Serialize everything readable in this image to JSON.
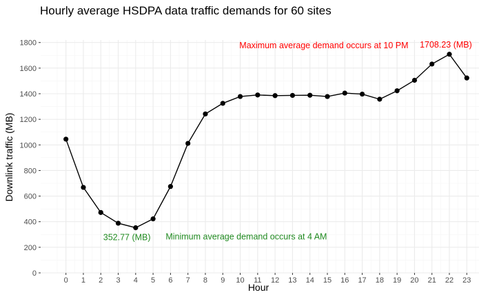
{
  "chart_data": {
    "type": "line",
    "title": "Hourly average HSDPA data traffic demands for 60 sites",
    "xlabel": "Hour",
    "ylabel": "Downlink traffic (MB)",
    "x": [
      0,
      1,
      2,
      3,
      4,
      5,
      6,
      7,
      8,
      9,
      10,
      11,
      12,
      13,
      14,
      15,
      16,
      17,
      18,
      19,
      20,
      21,
      22,
      23
    ],
    "x_tick_labels": [
      "0",
      "1",
      "2",
      "3",
      "4",
      "5",
      "6",
      "7",
      "8",
      "9",
      "10",
      "11",
      "12",
      "13",
      "14",
      "15",
      "16",
      "17",
      "18",
      "19",
      "20",
      "21",
      "22",
      "23"
    ],
    "y_tick_values": [
      0,
      200,
      400,
      600,
      800,
      1000,
      1200,
      1400,
      1600,
      1800
    ],
    "y_tick_labels": [
      "0",
      "200",
      "400",
      "600",
      "800",
      "1000",
      "1200",
      "1400",
      "1600",
      "1800"
    ],
    "xlim": [
      -1.45,
      23.7
    ],
    "ylim": [
      0,
      1820
    ],
    "grid": true,
    "series": [
      {
        "values": [
          1045,
          668,
          472,
          388,
          352.77,
          422,
          675,
          1012,
          1242,
          1325,
          1378,
          1390,
          1385,
          1387,
          1388,
          1378,
          1405,
          1397,
          1357,
          1423,
          1505,
          1632,
          1708.23,
          1523
        ]
      }
    ],
    "annotations": [
      {
        "text": "Maximum average demand occurs at 10 PM",
        "x": 14.8,
        "y": 1755,
        "anchor": "middle",
        "color": "#ff0000"
      },
      {
        "text": "1708.23 (MB)",
        "x": 21.8,
        "y": 1760,
        "anchor": "middle",
        "color": "#ff0000"
      },
      {
        "text": "352.77 (MB)",
        "x": 3.5,
        "y": 255,
        "anchor": "middle",
        "color": "#228b22"
      },
      {
        "text": "Minimum average demand occurs at 4 AM",
        "x": 10.35,
        "y": 260,
        "anchor": "middle",
        "color": "#228b22"
      }
    ],
    "colors": {
      "line": "#000000",
      "point": "#000000",
      "grid_major": "#ebebeb",
      "grid_minor": "#f5f5f5"
    }
  }
}
